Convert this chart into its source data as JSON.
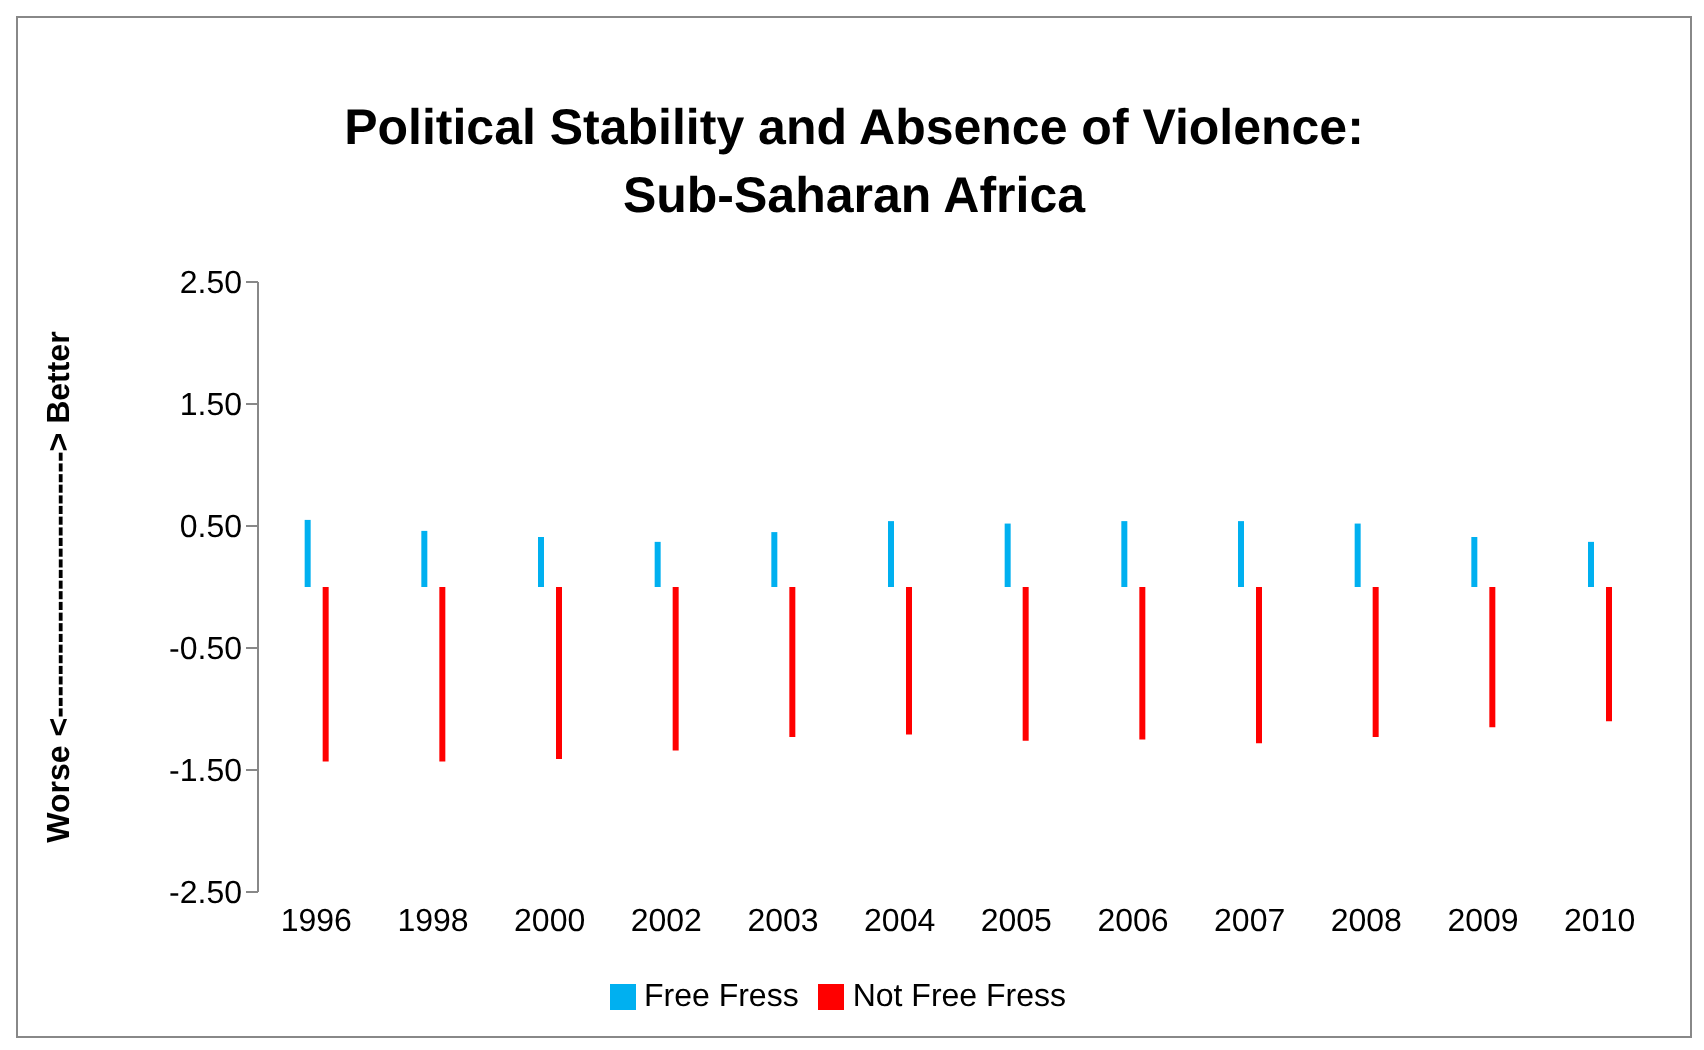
{
  "chart_data": {
    "type": "bar",
    "title": "Political Stability and Absence of Violence:\nSub-Saharan Africa",
    "ylabel": "Worse <-------------------------> Better",
    "categories": [
      "1996",
      "1998",
      "2000",
      "2002",
      "2003",
      "2004",
      "2005",
      "2006",
      "2007",
      "2008",
      "2009",
      "2010"
    ],
    "series": [
      {
        "name": "Free Fress",
        "color": "#00b0f0",
        "values": [
          0.55,
          0.46,
          0.41,
          0.37,
          0.45,
          0.54,
          0.52,
          0.54,
          0.54,
          0.52,
          0.41,
          0.37
        ]
      },
      {
        "name": "Not Free Fress",
        "color": "#ff0000",
        "values": [
          -1.43,
          -1.43,
          -1.41,
          -1.34,
          -1.23,
          -1.21,
          -1.26,
          -1.25,
          -1.28,
          -1.23,
          -1.15,
          -1.1
        ]
      }
    ],
    "ylim": [
      -2.5,
      2.5
    ],
    "yticks": [
      {
        "value": 2.5,
        "label": "2.50"
      },
      {
        "value": 1.5,
        "label": "1.50"
      },
      {
        "value": 0.5,
        "label": "0.50"
      },
      {
        "value": -0.5,
        "label": "-0.50"
      },
      {
        "value": -1.5,
        "label": "-1.50"
      },
      {
        "value": -2.5,
        "label": "-2.50"
      }
    ],
    "grid": false,
    "legend": "bottom"
  }
}
